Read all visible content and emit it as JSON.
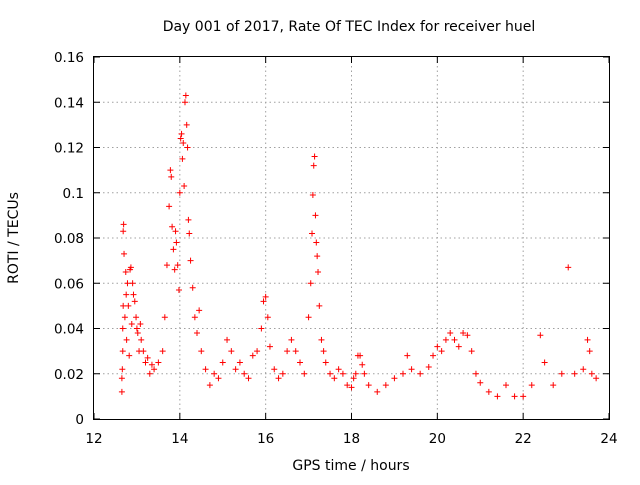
{
  "chart_data": {
    "type": "scatter",
    "title": "Day 001 of 2017, Rate Of TEC Index for receiver huel",
    "xlabel": "GPS time / hours",
    "ylabel": "ROTI / TECUs",
    "xlim": [
      12,
      24
    ],
    "ylim": [
      0,
      0.16
    ],
    "xticks": [
      12,
      14,
      16,
      18,
      20,
      22,
      24
    ],
    "xtick_labels": [
      "12",
      "14",
      "16",
      "18",
      "20",
      "22",
      "24"
    ],
    "yticks": [
      0,
      0.02,
      0.04,
      0.06,
      0.08,
      0.1,
      0.12,
      0.14,
      0.16
    ],
    "ytick_labels": [
      "0",
      "0.02",
      "0.04",
      "0.06",
      "0.08",
      "0.1",
      "0.12",
      "0.14",
      "0.16"
    ],
    "grid": true,
    "marker": "+",
    "series": [
      {
        "color": "#ff0000",
        "points": [
          [
            12.65,
            0.012
          ],
          [
            12.65,
            0.018
          ],
          [
            12.66,
            0.022
          ],
          [
            12.67,
            0.03
          ],
          [
            12.67,
            0.04
          ],
          [
            12.68,
            0.05
          ],
          [
            12.68,
            0.083
          ],
          [
            12.69,
            0.086
          ],
          [
            12.7,
            0.073
          ],
          [
            12.72,
            0.045
          ],
          [
            12.74,
            0.065
          ],
          [
            12.75,
            0.055
          ],
          [
            12.76,
            0.035
          ],
          [
            12.78,
            0.06
          ],
          [
            12.8,
            0.05
          ],
          [
            12.82,
            0.028
          ],
          [
            12.84,
            0.066
          ],
          [
            12.86,
            0.067
          ],
          [
            12.88,
            0.042
          ],
          [
            12.9,
            0.06
          ],
          [
            12.92,
            0.055
          ],
          [
            12.95,
            0.052
          ],
          [
            12.98,
            0.045
          ],
          [
            13.0,
            0.04
          ],
          [
            13.02,
            0.038
          ],
          [
            13.05,
            0.03
          ],
          [
            13.08,
            0.042
          ],
          [
            13.1,
            0.035
          ],
          [
            13.15,
            0.03
          ],
          [
            13.2,
            0.025
          ],
          [
            13.25,
            0.027
          ],
          [
            13.3,
            0.02
          ],
          [
            13.35,
            0.024
          ],
          [
            13.4,
            0.022
          ],
          [
            13.5,
            0.025
          ],
          [
            13.6,
            0.03
          ],
          [
            13.65,
            0.045
          ],
          [
            13.7,
            0.068
          ],
          [
            13.75,
            0.094
          ],
          [
            13.78,
            0.11
          ],
          [
            13.8,
            0.107
          ],
          [
            13.82,
            0.085
          ],
          [
            13.85,
            0.075
          ],
          [
            13.88,
            0.066
          ],
          [
            13.9,
            0.083
          ],
          [
            13.92,
            0.078
          ],
          [
            13.95,
            0.068
          ],
          [
            13.98,
            0.057
          ],
          [
            14.0,
            0.1
          ],
          [
            14.02,
            0.124
          ],
          [
            14.04,
            0.126
          ],
          [
            14.06,
            0.115
          ],
          [
            14.08,
            0.122
          ],
          [
            14.1,
            0.103
          ],
          [
            14.12,
            0.14
          ],
          [
            14.14,
            0.143
          ],
          [
            14.16,
            0.13
          ],
          [
            14.18,
            0.12
          ],
          [
            14.2,
            0.088
          ],
          [
            14.22,
            0.082
          ],
          [
            14.25,
            0.07
          ],
          [
            14.3,
            0.058
          ],
          [
            14.35,
            0.045
          ],
          [
            14.4,
            0.038
          ],
          [
            14.45,
            0.048
          ],
          [
            14.5,
            0.03
          ],
          [
            14.6,
            0.022
          ],
          [
            14.7,
            0.015
          ],
          [
            14.8,
            0.02
          ],
          [
            14.9,
            0.018
          ],
          [
            15.0,
            0.025
          ],
          [
            15.1,
            0.035
          ],
          [
            15.2,
            0.03
          ],
          [
            15.3,
            0.022
          ],
          [
            15.4,
            0.025
          ],
          [
            15.5,
            0.02
          ],
          [
            15.6,
            0.018
          ],
          [
            15.7,
            0.028
          ],
          [
            15.8,
            0.03
          ],
          [
            15.9,
            0.04
          ],
          [
            15.95,
            0.052
          ],
          [
            16.0,
            0.054
          ],
          [
            16.05,
            0.045
          ],
          [
            16.1,
            0.032
          ],
          [
            16.2,
            0.022
          ],
          [
            16.3,
            0.018
          ],
          [
            16.4,
            0.02
          ],
          [
            16.5,
            0.03
          ],
          [
            16.6,
            0.035
          ],
          [
            16.7,
            0.03
          ],
          [
            16.8,
            0.025
          ],
          [
            16.9,
            0.02
          ],
          [
            17.0,
            0.045
          ],
          [
            17.05,
            0.06
          ],
          [
            17.08,
            0.082
          ],
          [
            17.1,
            0.099
          ],
          [
            17.12,
            0.112
          ],
          [
            17.14,
            0.116
          ],
          [
            17.16,
            0.09
          ],
          [
            17.18,
            0.078
          ],
          [
            17.2,
            0.072
          ],
          [
            17.22,
            0.065
          ],
          [
            17.25,
            0.05
          ],
          [
            17.3,
            0.035
          ],
          [
            17.35,
            0.03
          ],
          [
            17.4,
            0.025
          ],
          [
            17.5,
            0.02
          ],
          [
            17.6,
            0.018
          ],
          [
            17.7,
            0.022
          ],
          [
            17.8,
            0.02
          ],
          [
            17.9,
            0.015
          ],
          [
            18.0,
            0.014
          ],
          [
            18.05,
            0.018
          ],
          [
            18.1,
            0.02
          ],
          [
            18.15,
            0.028
          ],
          [
            18.2,
            0.028
          ],
          [
            18.25,
            0.024
          ],
          [
            18.3,
            0.02
          ],
          [
            18.4,
            0.015
          ],
          [
            18.6,
            0.012
          ],
          [
            18.8,
            0.015
          ],
          [
            19.0,
            0.018
          ],
          [
            19.2,
            0.02
          ],
          [
            19.3,
            0.028
          ],
          [
            19.4,
            0.022
          ],
          [
            19.6,
            0.02
          ],
          [
            19.8,
            0.023
          ],
          [
            19.9,
            0.028
          ],
          [
            20.0,
            0.032
          ],
          [
            20.1,
            0.03
          ],
          [
            20.2,
            0.035
          ],
          [
            20.3,
            0.038
          ],
          [
            20.4,
            0.035
          ],
          [
            20.5,
            0.032
          ],
          [
            20.6,
            0.038
          ],
          [
            20.7,
            0.037
          ],
          [
            20.8,
            0.03
          ],
          [
            20.9,
            0.02
          ],
          [
            21.0,
            0.016
          ],
          [
            21.2,
            0.012
          ],
          [
            21.4,
            0.01
          ],
          [
            21.6,
            0.015
          ],
          [
            21.8,
            0.01
          ],
          [
            22.0,
            0.01
          ],
          [
            22.2,
            0.015
          ],
          [
            22.4,
            0.037
          ],
          [
            22.5,
            0.025
          ],
          [
            22.7,
            0.015
          ],
          [
            22.9,
            0.02
          ],
          [
            23.05,
            0.067
          ],
          [
            23.2,
            0.02
          ],
          [
            23.4,
            0.022
          ],
          [
            23.5,
            0.035
          ],
          [
            23.55,
            0.03
          ],
          [
            23.6,
            0.02
          ],
          [
            23.7,
            0.018
          ]
        ]
      }
    ]
  }
}
